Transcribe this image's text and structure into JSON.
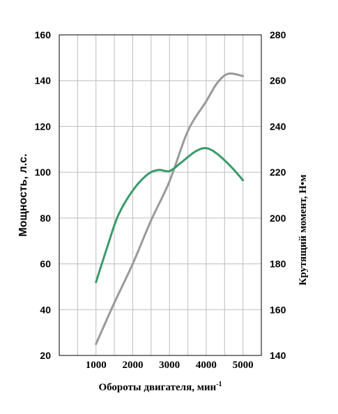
{
  "chart_data": {
    "type": "line",
    "title": "",
    "xlabel": "Обороты двигателя, мин",
    "xlabel_sup": "-1",
    "ylabel": "Мощность, л.с.",
    "y2label": "Крутящий момент, Н•м",
    "x_ticks": [
      1000,
      2000,
      3000,
      4000,
      5000
    ],
    "y_ticks": [
      20,
      40,
      60,
      80,
      100,
      120,
      140,
      160
    ],
    "y2_ticks": [
      140,
      160,
      180,
      200,
      220,
      240,
      260,
      280
    ],
    "xlim": [
      0,
      5500
    ],
    "ylim": [
      20,
      160
    ],
    "y2lim": [
      140,
      280
    ],
    "grid": true,
    "legend": "none",
    "series": [
      {
        "axis": "left",
        "color": "#999999",
        "points": [
          [
            1000,
            25
          ],
          [
            1500,
            43
          ],
          [
            2000,
            60
          ],
          [
            2500,
            79
          ],
          [
            3000,
            96
          ],
          [
            3500,
            118
          ],
          [
            4000,
            131
          ],
          [
            4300,
            139
          ],
          [
            4600,
            143
          ],
          [
            5000,
            142
          ]
        ]
      },
      {
        "axis": "right",
        "color": "#3a9a6a",
        "points": [
          [
            1000,
            172
          ],
          [
            1300,
            187
          ],
          [
            1600,
            201
          ],
          [
            2000,
            212
          ],
          [
            2400,
            219
          ],
          [
            2700,
            221
          ],
          [
            3000,
            220.5
          ],
          [
            3300,
            224
          ],
          [
            3700,
            229
          ],
          [
            4000,
            230.5
          ],
          [
            4300,
            228
          ],
          [
            4700,
            222
          ],
          [
            5000,
            216.5
          ]
        ]
      }
    ]
  }
}
